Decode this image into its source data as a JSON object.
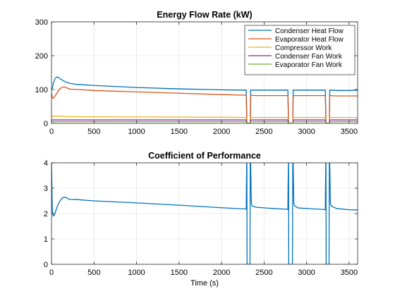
{
  "chart_data": [
    {
      "type": "line",
      "title": "Energy Flow Rate (kW)",
      "xlabel": "",
      "ylabel": "",
      "xlim": [
        0,
        3600
      ],
      "ylim": [
        0,
        300
      ],
      "xticks": [
        0,
        500,
        1000,
        1500,
        2000,
        2500,
        3000,
        3500
      ],
      "yticks": [
        0,
        100,
        200,
        300
      ],
      "grid": true,
      "legend": "top-right",
      "series": [
        {
          "name": "Condenser Heat Flow",
          "color": "#0072bd",
          "x": [
            0,
            10,
            20,
            40,
            60,
            80,
            100,
            140,
            180,
            220,
            300,
            500,
            1000,
            1500,
            2000,
            2290,
            2298,
            2302,
            2330,
            2338,
            2342,
            2400,
            2600,
            2780,
            2788,
            2792,
            2830,
            2838,
            2842,
            2900,
            3100,
            3220,
            3228,
            3232,
            3260,
            3268,
            3272,
            3350,
            3500,
            3600
          ],
          "y": [
            100,
            105,
            118,
            131,
            137,
            136,
            132,
            126,
            121,
            118,
            115,
            112,
            106,
            102,
            99,
            98,
            0,
            0,
            0,
            0,
            98,
            98,
            98,
            98,
            0,
            0,
            0,
            0,
            98,
            98,
            98,
            98,
            0,
            0,
            0,
            0,
            98,
            97,
            97,
            98
          ]
        },
        {
          "name": "Evaporator Heat Flow",
          "color": "#d95319",
          "x": [
            0,
            10,
            20,
            40,
            60,
            80,
            100,
            140,
            180,
            220,
            300,
            500,
            1000,
            1500,
            2000,
            2290,
            2298,
            2302,
            2330,
            2338,
            2342,
            2400,
            2600,
            2780,
            2788,
            2792,
            2830,
            2838,
            2842,
            2900,
            3100,
            3220,
            3228,
            3232,
            3260,
            3268,
            3272,
            3350,
            3500,
            3600
          ],
          "y": [
            90,
            76,
            74,
            80,
            88,
            96,
            103,
            108,
            105,
            101,
            100,
            97,
            93,
            89,
            85,
            83,
            0,
            0,
            0,
            0,
            83,
            82,
            82,
            82,
            0,
            0,
            0,
            0,
            82,
            82,
            82,
            82,
            0,
            0,
            0,
            0,
            82,
            81,
            81,
            81
          ]
        },
        {
          "name": "Compressor Work",
          "color": "#edb120",
          "x": [
            0,
            20,
            100,
            200,
            500,
            1000,
            1500,
            2000,
            2290,
            2298,
            2302,
            2330,
            2338,
            2342,
            2780,
            2788,
            2792,
            2830,
            2838,
            2842,
            3220,
            3228,
            3232,
            3260,
            3268,
            3272,
            3600
          ],
          "y": [
            20,
            21,
            21,
            20,
            19.5,
            19,
            18.5,
            18,
            17.5,
            0,
            0,
            0,
            0,
            17.5,
            17.5,
            0,
            0,
            0,
            0,
            17.5,
            17.5,
            0,
            0,
            0,
            0,
            17.5,
            17.5
          ]
        },
        {
          "name": "Condenser Fan Work",
          "color": "#7e2f8e",
          "x": [
            0,
            2290,
            2298,
            2302,
            2330,
            2338,
            2342,
            2780,
            2788,
            2792,
            2830,
            2838,
            2842,
            3220,
            3228,
            3232,
            3260,
            3268,
            3272,
            3600
          ],
          "y": [
            10,
            10,
            0,
            0,
            0,
            0,
            10,
            10,
            0,
            0,
            0,
            0,
            10,
            10,
            0,
            0,
            0,
            0,
            10,
            10
          ]
        },
        {
          "name": "Evaporator Fan Work",
          "color": "#77ac30",
          "x": [
            0,
            2290,
            2298,
            2302,
            2330,
            2338,
            2342,
            2780,
            2788,
            2792,
            2830,
            2838,
            2842,
            3220,
            3228,
            3232,
            3260,
            3268,
            3272,
            3600
          ],
          "y": [
            5,
            5,
            0,
            0,
            0,
            0,
            5,
            5,
            0,
            0,
            0,
            0,
            5,
            5,
            0,
            0,
            0,
            0,
            5,
            5
          ]
        }
      ]
    },
    {
      "type": "line",
      "title": "Coefficient of Performance",
      "xlabel": "Time (s)",
      "ylabel": "",
      "xlim": [
        0,
        3600
      ],
      "ylim": [
        0,
        4
      ],
      "xticks": [
        0,
        500,
        1000,
        1500,
        2000,
        2500,
        3000,
        3500
      ],
      "yticks": [
        0,
        1,
        2,
        3,
        4
      ],
      "grid": true,
      "series": [
        {
          "color": "#0072bd",
          "x": [
            0,
            5,
            10,
            20,
            30,
            50,
            70,
            100,
            130,
            160,
            180,
            200,
            220,
            300,
            500,
            1000,
            1500,
            2000,
            2280,
            2290,
            2292,
            2296,
            2298,
            2300,
            2305,
            2330,
            2334,
            2337,
            2342,
            2350,
            2360,
            2400,
            2600,
            2770,
            2780,
            2782,
            2786,
            2788,
            2790,
            2795,
            2830,
            2834,
            2837,
            2842,
            2850,
            2860,
            2900,
            3100,
            3210,
            3220,
            3222,
            3226,
            3228,
            3230,
            3235,
            3260,
            3264,
            3267,
            3272,
            3280,
            3290,
            3350,
            3500,
            3600
          ],
          "y": [
            4.0,
            3.0,
            2.1,
            1.9,
            1.92,
            2.1,
            2.3,
            2.5,
            2.62,
            2.65,
            2.62,
            2.57,
            2.56,
            2.55,
            2.5,
            2.42,
            2.33,
            2.23,
            2.18,
            2.17,
            3.0,
            4.0,
            4.0,
            0,
            0,
            0,
            0,
            4.0,
            4.0,
            2.4,
            2.3,
            2.25,
            2.2,
            2.17,
            2.16,
            3.0,
            4.0,
            4.0,
            0,
            0,
            0,
            0,
            4.0,
            4.0,
            2.4,
            2.3,
            2.22,
            2.18,
            2.16,
            2.15,
            3.0,
            4.0,
            4.0,
            0,
            0,
            0,
            0,
            4.0,
            4.0,
            2.4,
            2.3,
            2.2,
            2.15,
            2.14
          ]
        }
      ]
    }
  ]
}
